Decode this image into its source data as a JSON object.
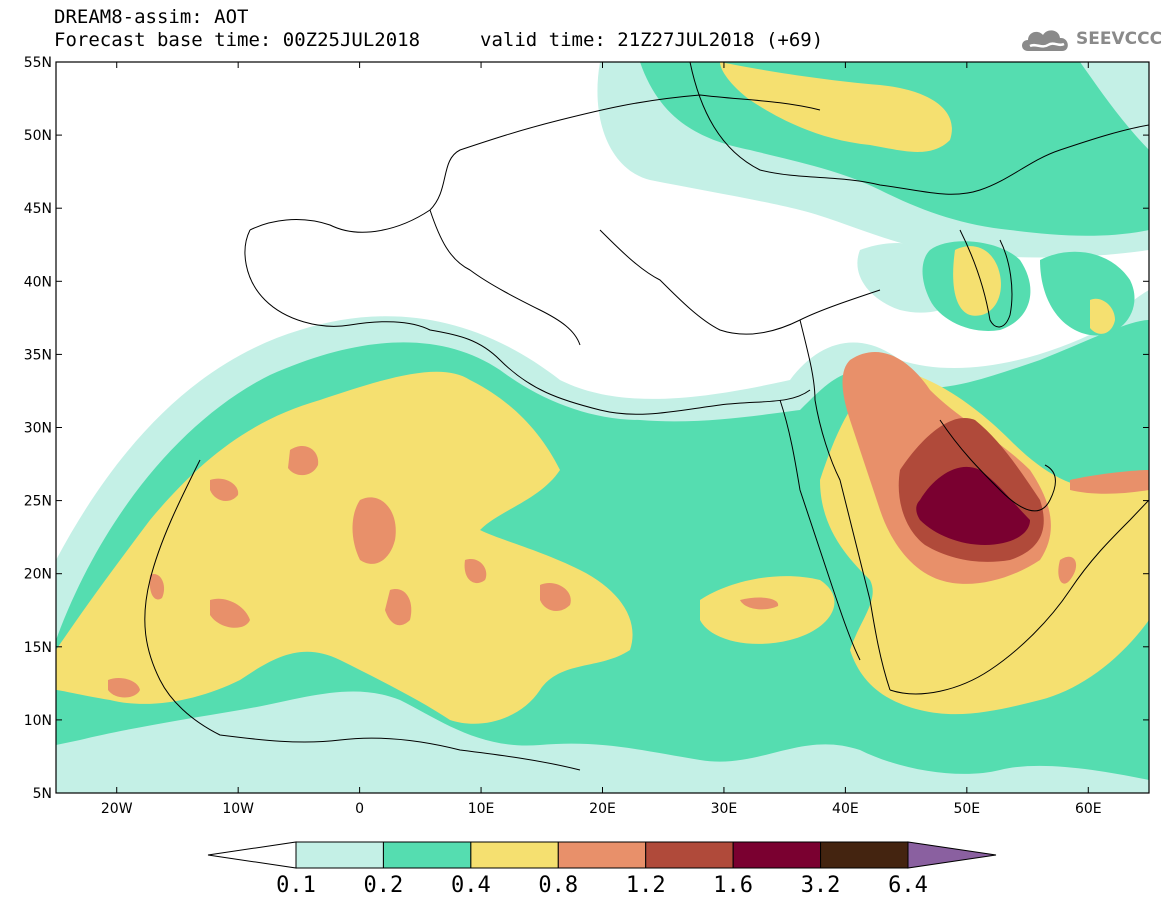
{
  "header": {
    "title": "DREAM8-assim: AOT",
    "base_time": "Forecast base time: 00Z25JUL2018",
    "valid_time": "valid time: 21Z27JUL2018 (+69)"
  },
  "logo": {
    "text": "SEEVCCC",
    "icon": "cloud-icon"
  },
  "axes": {
    "lat_labels": [
      "55N",
      "50N",
      "45N",
      "40N",
      "35N",
      "30N",
      "25N",
      "20N",
      "15N",
      "10N",
      "5N"
    ],
    "lon_labels": [
      "20W",
      "10W",
      "0",
      "10E",
      "20E",
      "30E",
      "40E",
      "50E",
      "60E"
    ],
    "lat_range": [
      5,
      55
    ],
    "lon_range": [
      -25,
      65
    ]
  },
  "colorbar": {
    "labels": [
      "0.1",
      "0.2",
      "0.4",
      "0.8",
      "1.2",
      "1.6",
      "3.2",
      "6.4"
    ],
    "colors": [
      "#ffffff",
      "#c4f0e6",
      "#55ddb0",
      "#f5e070",
      "#e8906a",
      "#b04a3a",
      "#7a0030",
      "#442410",
      "#8a60a0"
    ]
  },
  "colors": {
    "aot_0_1": "#c4f0e6",
    "aot_0_2": "#55ddb0",
    "aot_0_4": "#f5e070",
    "aot_0_8": "#e8906a",
    "aot_1_2": "#b04a3a",
    "aot_1_6": "#7a0030",
    "aot_3_2": "#442410",
    "aot_6_4": "#8a60a0"
  }
}
